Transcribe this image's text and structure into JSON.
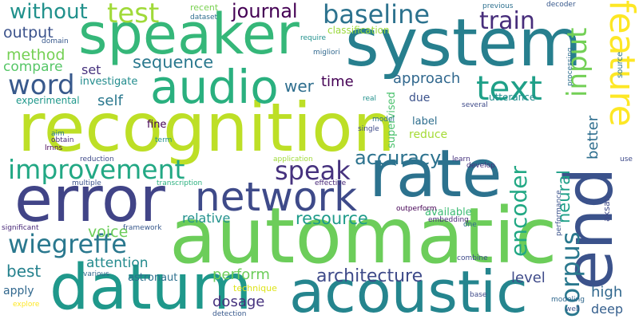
{
  "words": {
    "recognition": {
      "text": "recognition",
      "color": "#bddf26"
    },
    "automatic": {
      "text": "automatic",
      "color": "#6ccd5a"
    },
    "system": {
      "text": "system",
      "color": "#277f8e"
    },
    "speaker": {
      "text": "speaker",
      "color": "#35b779"
    },
    "error": {
      "text": "error",
      "color": "#414487"
    },
    "acoustic": {
      "text": "acoustic",
      "color": "#25858e"
    },
    "datum": {
      "text": "datum",
      "color": "#1f988b"
    },
    "audio": {
      "text": "audio",
      "color": "#2ab07f"
    },
    "end": {
      "text": "end",
      "color": "#3b528b"
    },
    "rate": {
      "text": "rate",
      "color": "#2c728e"
    },
    "network": {
      "text": "network",
      "color": "#3e4a89"
    },
    "feature": {
      "text": "feature",
      "color": "#fde725"
    },
    "baseline": {
      "text": "baseline",
      "color": "#2c728e"
    },
    "improvement": {
      "text": "improvement",
      "color": "#22a884"
    },
    "wiegreffe": {
      "text": "wiegreffe",
      "color": "#2a788e"
    },
    "text": {
      "text": "text",
      "color": "#1fa088"
    },
    "word": {
      "text": "word",
      "color": "#38598c"
    },
    "corpus": {
      "text": "corpus",
      "color": "#2a788e"
    },
    "speak": {
      "text": "speak",
      "color": "#46327e"
    },
    "accuracy": {
      "text": "accuracy",
      "color": "#2c728e"
    },
    "test": {
      "text": "test",
      "color": "#a0da39"
    },
    "without": {
      "text": "without",
      "color": "#21918c"
    },
    "train": {
      "text": "train",
      "color": "#472d7b"
    },
    "input": {
      "text": "input",
      "color": "#73d056"
    },
    "encoder": {
      "text": "encoder",
      "color": "#22a884"
    },
    "journal": {
      "text": "journal",
      "color": "#440154"
    },
    "resource": {
      "text": "resource",
      "color": "#1e9b8a"
    },
    "architecture": {
      "text": "architecture",
      "color": "#3e4a89"
    },
    "output": {
      "text": "output",
      "color": "#3b528b"
    },
    "method": {
      "text": "method",
      "color": "#75d054"
    },
    "sequence": {
      "text": "sequence",
      "color": "#2a788e"
    },
    "compare": {
      "text": "compare",
      "color": "#56c667"
    },
    "wer": {
      "text": "wer",
      "color": "#2e6e8e"
    },
    "time": {
      "text": "time",
      "color": "#440154"
    },
    "approach": {
      "text": "approach",
      "color": "#31688e"
    },
    "neural": {
      "text": "neural",
      "color": "#1fa088"
    },
    "better": {
      "text": "better",
      "color": "#2e6e8e"
    },
    "high": {
      "text": "high",
      "color": "#31688e"
    },
    "set": {
      "text": "set",
      "color": "#46327e"
    },
    "self": {
      "text": "self",
      "color": "#2a788e"
    },
    "investigate": {
      "text": "investigate",
      "color": "#228c8d"
    },
    "experimental": {
      "text": "experimental",
      "color": "#1f988b"
    },
    "voice": {
      "text": "voice",
      "color": "#6ccd5a"
    },
    "relative": {
      "text": "relative",
      "color": "#21918c"
    },
    "attention": {
      "text": "attention",
      "color": "#238a8d"
    },
    "best": {
      "text": "best",
      "color": "#26828e"
    },
    "perform": {
      "text": "perform",
      "color": "#6ccd5a"
    },
    "dosage": {
      "text": "dosage",
      "color": "#46327e"
    },
    "level": {
      "text": "level",
      "color": "#3e4a89"
    },
    "deep": {
      "text": "deep",
      "color": "#355f8d"
    },
    "astronaut": {
      "text": "astronaut",
      "color": "#2d708e"
    },
    "apply": {
      "text": "apply",
      "color": "#31688e"
    },
    "technique": {
      "text": "technique",
      "color": "#dde318"
    },
    "utterance": {
      "text": "utterance",
      "color": "#228c8d"
    },
    "due": {
      "text": "due",
      "color": "#3b528b"
    },
    "label": {
      "text": "label",
      "color": "#2e6e8e"
    },
    "reduce": {
      "text": "reduce",
      "color": "#a5db36"
    },
    "available": {
      "text": "available",
      "color": "#3dbc74"
    },
    "supervised": {
      "text": "supervised",
      "color": "#4ac16d"
    },
    "fine": {
      "text": "fine",
      "color": "#440154"
    },
    "classification": {
      "text": "classification",
      "color": "#9bd93c"
    },
    "recent": {
      "text": "recent",
      "color": "#7ad151"
    },
    "dataset": {
      "text": "dataset",
      "color": "#2e6e8e"
    },
    "previous": {
      "text": "previous",
      "color": "#2d708e"
    },
    "decoder": {
      "text": "decoder",
      "color": "#38598c"
    },
    "require": {
      "text": "require",
      "color": "#21918c"
    },
    "migliori": {
      "text": "migliori",
      "color": "#31688e"
    },
    "domain": {
      "text": "domain",
      "color": "#38598c"
    },
    "processing": {
      "text": "processing",
      "color": "#2e6e8e"
    },
    "source": {
      "text": "source",
      "color": "#2a788e"
    },
    "real": {
      "text": "real",
      "color": "#21918c"
    },
    "several": {
      "text": "several",
      "color": "#3e4a89"
    },
    "model": {
      "text": "model",
      "color": "#2e6e8e"
    },
    "single": {
      "text": "single",
      "color": "#3e4a89"
    },
    "aim": {
      "text": "aim",
      "color": "#2a788e"
    },
    "obtain": {
      "text": "obtain",
      "color": "#482878"
    },
    "lrnns": {
      "text": "lrnns",
      "color": "#440154"
    },
    "term": {
      "text": "term",
      "color": "#21918c"
    },
    "reduction": {
      "text": "reduction",
      "color": "#3e4a89"
    },
    "multiple": {
      "text": "multiple",
      "color": "#3b528b"
    },
    "transcription": {
      "text": "transcription",
      "color": "#2ab07f"
    },
    "effective": {
      "text": "effective",
      "color": "#482878"
    },
    "application": {
      "text": "application",
      "color": "#9fda3a"
    },
    "learn": {
      "text": "learn",
      "color": "#46327e"
    },
    "develop": {
      "text": "develop",
      "color": "#46327e"
    },
    "performance": {
      "text": "performance",
      "color": "#3b528b"
    },
    "use": {
      "text": "use",
      "color": "#3e4a89"
    },
    "aksan": {
      "text": "aksan",
      "color": "#3e4a89"
    },
    "outperform": {
      "text": "outperform",
      "color": "#440154"
    },
    "embedding": {
      "text": "embedding",
      "color": "#482878"
    },
    "one": {
      "text": "one",
      "color": "#31688e"
    },
    "significant": {
      "text": "significant",
      "color": "#482878"
    },
    "framework": {
      "text": "framework",
      "color": "#38598c"
    },
    "various": {
      "text": "various",
      "color": "#31688e"
    },
    "combine": {
      "text": "combine",
      "color": "#3e4a89"
    },
    "base": {
      "text": "base",
      "color": "#3e4a89"
    },
    "modeling": {
      "text": "modeling",
      "color": "#31688e"
    },
    "well": {
      "text": "well",
      "color": "#3b528b"
    },
    "explore": {
      "text": "explore",
      "color": "#fde725"
    },
    "detection": {
      "text": "detection",
      "color": "#38598c"
    }
  }
}
